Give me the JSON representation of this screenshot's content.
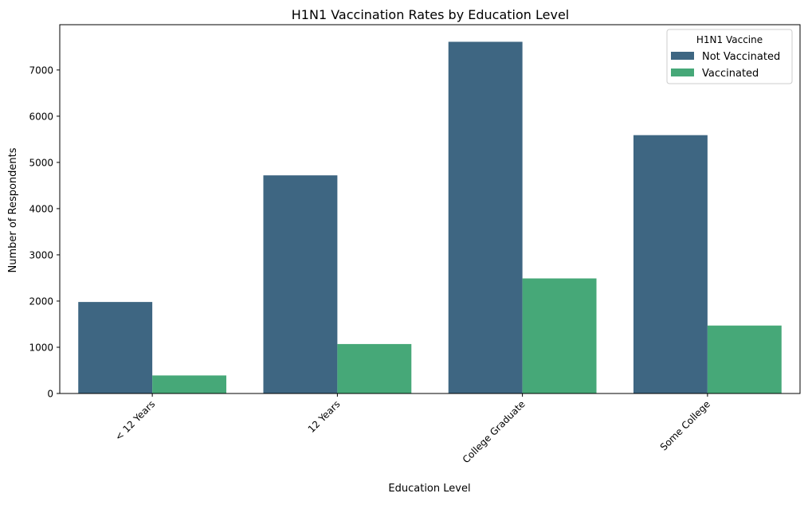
{
  "chart_data": {
    "type": "bar",
    "title": "H1N1 Vaccination Rates by Education Level",
    "xlabel": "Education Level",
    "ylabel": "Number of Respondents",
    "categories": [
      "< 12 Years",
      "12 Years",
      "College Graduate",
      "Some College"
    ],
    "ylim": [
      0,
      7980
    ],
    "yticks": [
      0,
      1000,
      2000,
      3000,
      4000,
      5000,
      6000,
      7000
    ],
    "xtick_rotation_deg": 45,
    "grid": false,
    "legend": {
      "title": "H1N1 Vaccine",
      "placement": "top-right"
    },
    "series": [
      {
        "name": "Not Vaccinated",
        "color": "#3e6682",
        "values": [
          1980,
          4720,
          7610,
          5590
        ]
      },
      {
        "name": "Vaccinated",
        "color": "#46a878",
        "values": [
          390,
          1070,
          2490,
          1470
        ]
      }
    ]
  }
}
